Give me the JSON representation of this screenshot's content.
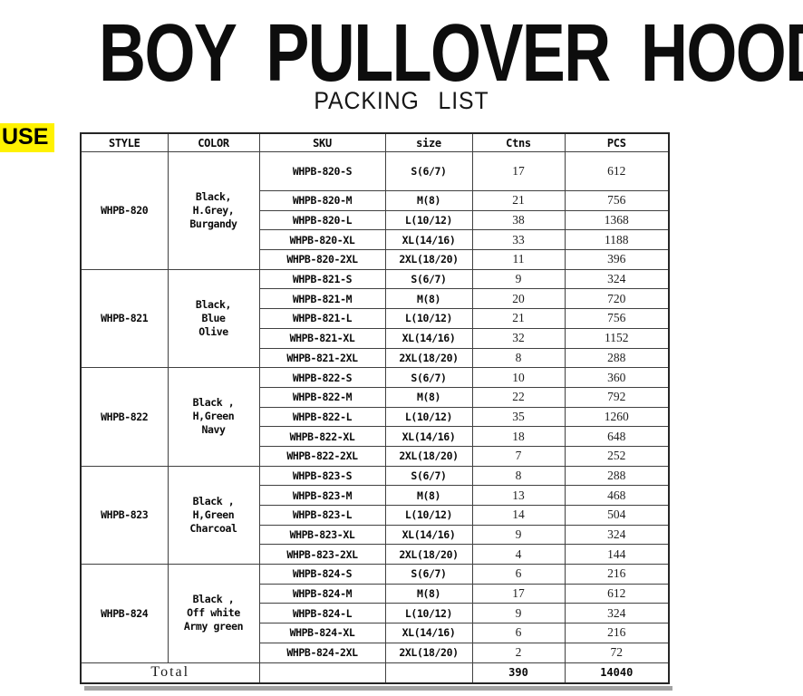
{
  "page": {
    "title": "BOY PULLOVER HOODIE",
    "subtitle": "PACKING LIST",
    "corner_label": "USE"
  },
  "table": {
    "headers": [
      "STYLE",
      "COLOR",
      "SKU",
      "size",
      "Ctns",
      "PCS"
    ],
    "groups": [
      {
        "style": "WHPB-820",
        "color_lines": [
          "Black,",
          "H.Grey,",
          "Burgandy"
        ],
        "rows": [
          {
            "sku": "WHPB-820-S",
            "size": "S(6/7)",
            "ctns": "17",
            "pcs": "612"
          },
          {
            "sku": "WHPB-820-M",
            "size": "M(8)",
            "ctns": "21",
            "pcs": "756"
          },
          {
            "sku": "WHPB-820-L",
            "size": "L(10/12)",
            "ctns": "38",
            "pcs": "1368"
          },
          {
            "sku": "WHPB-820-XL",
            "size": "XL(14/16)",
            "ctns": "33",
            "pcs": "1188"
          },
          {
            "sku": "WHPB-820-2XL",
            "size": "2XL(18/20)",
            "ctns": "11",
            "pcs": "396"
          }
        ]
      },
      {
        "style": "WHPB-821",
        "color_lines": [
          "Black,",
          "Blue",
          "Olive"
        ],
        "rows": [
          {
            "sku": "WHPB-821-S",
            "size": "S(6/7)",
            "ctns": "9",
            "pcs": "324"
          },
          {
            "sku": "WHPB-821-M",
            "size": "M(8)",
            "ctns": "20",
            "pcs": "720"
          },
          {
            "sku": "WHPB-821-L",
            "size": "L(10/12)",
            "ctns": "21",
            "pcs": "756"
          },
          {
            "sku": "WHPB-821-XL",
            "size": "XL(14/16)",
            "ctns": "32",
            "pcs": "1152"
          },
          {
            "sku": "WHPB-821-2XL",
            "size": "2XL(18/20)",
            "ctns": "8",
            "pcs": "288"
          }
        ]
      },
      {
        "style": "WHPB-822",
        "color_lines": [
          "Black ,",
          "H,Green",
          "Navy"
        ],
        "rows": [
          {
            "sku": "WHPB-822-S",
            "size": "S(6/7)",
            "ctns": "10",
            "pcs": "360"
          },
          {
            "sku": "WHPB-822-M",
            "size": "M(8)",
            "ctns": "22",
            "pcs": "792"
          },
          {
            "sku": "WHPB-822-L",
            "size": "L(10/12)",
            "ctns": "35",
            "pcs": "1260"
          },
          {
            "sku": "WHPB-822-XL",
            "size": "XL(14/16)",
            "ctns": "18",
            "pcs": "648"
          },
          {
            "sku": "WHPB-822-2XL",
            "size": "2XL(18/20)",
            "ctns": "7",
            "pcs": "252"
          }
        ]
      },
      {
        "style": "WHPB-823",
        "color_lines": [
          "Black ,",
          "H,Green",
          "Charcoal"
        ],
        "rows": [
          {
            "sku": "WHPB-823-S",
            "size": "S(6/7)",
            "ctns": "8",
            "pcs": "288"
          },
          {
            "sku": "WHPB-823-M",
            "size": "M(8)",
            "ctns": "13",
            "pcs": "468"
          },
          {
            "sku": "WHPB-823-L",
            "size": "L(10/12)",
            "ctns": "14",
            "pcs": "504"
          },
          {
            "sku": "WHPB-823-XL",
            "size": "XL(14/16)",
            "ctns": "9",
            "pcs": "324"
          },
          {
            "sku": "WHPB-823-2XL",
            "size": "2XL(18/20)",
            "ctns": "4",
            "pcs": "144"
          }
        ]
      },
      {
        "style": "WHPB-824",
        "color_lines": [
          "Black ,",
          "Off white",
          "Army green"
        ],
        "rows": [
          {
            "sku": "WHPB-824-S",
            "size": "S(6/7)",
            "ctns": "6",
            "pcs": "216"
          },
          {
            "sku": "WHPB-824-M",
            "size": "M(8)",
            "ctns": "17",
            "pcs": "612"
          },
          {
            "sku": "WHPB-824-L",
            "size": "L(10/12)",
            "ctns": "9",
            "pcs": "324"
          },
          {
            "sku": "WHPB-824-XL",
            "size": "XL(14/16)",
            "ctns": "6",
            "pcs": "216"
          },
          {
            "sku": "WHPB-824-2XL",
            "size": "2XL(18/20)",
            "ctns": "2",
            "pcs": "72"
          }
        ]
      }
    ],
    "total": {
      "label": "Total",
      "ctns": "390",
      "pcs": "14040"
    }
  },
  "colors": {
    "highlight": "#fff200",
    "ink": "#0d0d0d",
    "grid": "#404040",
    "scan_shadow": "#a3a3a3"
  }
}
